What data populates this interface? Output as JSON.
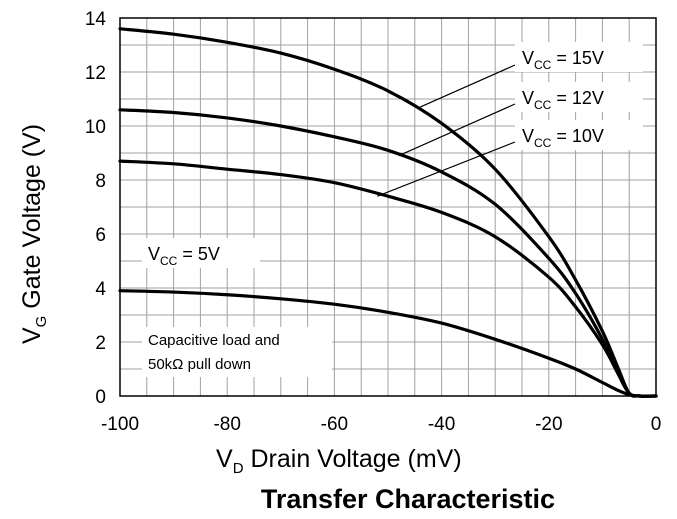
{
  "chart_data": {
    "type": "line",
    "title": "Transfer Characteristic",
    "xlabel": {
      "main": "V",
      "sub": "D",
      "rest": " Drain Voltage (mV)"
    },
    "ylabel": {
      "main": "V",
      "sub": "G",
      "rest": " Gate Voltage (V)"
    },
    "xlim": [
      -100,
      0
    ],
    "ylim": [
      0,
      14
    ],
    "xticks": [
      -100,
      -80,
      -60,
      -40,
      -20,
      0
    ],
    "yticks": [
      0,
      2,
      4,
      6,
      8,
      10,
      12,
      14
    ],
    "xtick_labels": [
      "-100",
      "-80",
      "-60",
      "-40",
      "-20",
      "0"
    ],
    "ytick_labels": [
      "0",
      "2",
      "4",
      "6",
      "8",
      "10",
      "12",
      "14"
    ],
    "grid": true,
    "series": [
      {
        "name": "VCC = 15V",
        "x": [
          -100,
          -90,
          -80,
          -70,
          -60,
          -50,
          -40,
          -30,
          -20,
          -15,
          -10,
          -7,
          -5,
          -3,
          0
        ],
        "y": [
          13.6,
          13.4,
          13.1,
          12.7,
          12.1,
          11.3,
          10.1,
          8.4,
          5.9,
          4.3,
          2.4,
          1.0,
          0.1,
          0,
          0
        ]
      },
      {
        "name": "VCC = 12V",
        "x": [
          -100,
          -90,
          -80,
          -70,
          -60,
          -50,
          -40,
          -30,
          -20,
          -15,
          -10,
          -7,
          -5,
          -3,
          0
        ],
        "y": [
          10.6,
          10.5,
          10.3,
          10.0,
          9.6,
          9.1,
          8.3,
          7.1,
          5.1,
          3.8,
          2.1,
          0.8,
          0.1,
          0,
          0
        ]
      },
      {
        "name": "VCC = 10V",
        "x": [
          -100,
          -90,
          -80,
          -70,
          -60,
          -50,
          -40,
          -30,
          -20,
          -15,
          -10,
          -7,
          -5,
          -3,
          0
        ],
        "y": [
          8.7,
          8.6,
          8.4,
          8.2,
          7.9,
          7.4,
          6.8,
          5.9,
          4.4,
          3.3,
          1.9,
          0.8,
          0.1,
          0,
          0
        ]
      },
      {
        "name": "VCC = 5V",
        "x": [
          -100,
          -90,
          -80,
          -70,
          -60,
          -50,
          -40,
          -30,
          -20,
          -15,
          -10,
          -7,
          -5,
          -3,
          0
        ],
        "y": [
          3.9,
          3.85,
          3.75,
          3.6,
          3.4,
          3.1,
          2.7,
          2.1,
          1.4,
          1.0,
          0.5,
          0.2,
          0.05,
          0,
          0
        ]
      }
    ],
    "annotations": {
      "legend_15": {
        "v": "V",
        "sub": "CC",
        "rest": " = 15V"
      },
      "legend_12": {
        "v": "V",
        "sub": "CC",
        "rest": " = 12V"
      },
      "legend_10": {
        "v": "V",
        "sub": "CC",
        "rest": " = 10V"
      },
      "legend_5": {
        "v": "V",
        "sub": "CC",
        "rest": " = 5V"
      },
      "note_line1": "Capacitive load and",
      "note_line2": "50kΩ pull down"
    },
    "line_color": "#000000",
    "grid_color": "#a0a0a0"
  }
}
